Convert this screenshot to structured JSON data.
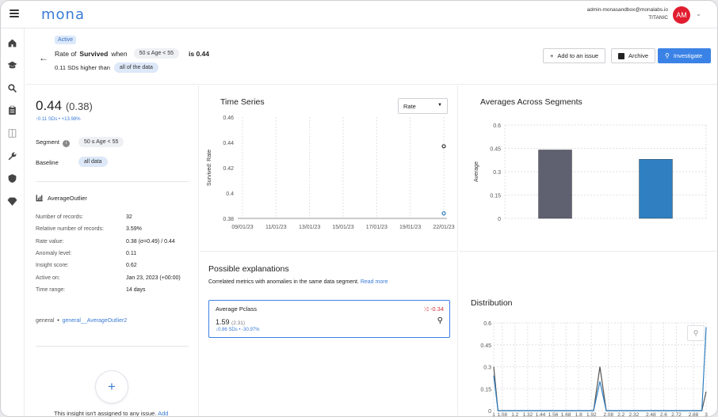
{
  "app": {
    "logo": "mona"
  },
  "user": {
    "email": "admin-monasandbox@monalabs.io",
    "org": "TITANIC",
    "initials": "AM"
  },
  "header": {
    "status": "Active",
    "title_prefix": "Rate of",
    "metric": "Survived",
    "when": "when",
    "segment_chip": "50 ≤ Age < 55",
    "is_label": "is 0.44",
    "subtitle": "0.11 SDs higher than",
    "baseline_chip": "all of the data",
    "buttons": {
      "add_issue": "Add to an issue",
      "archive": "Archive",
      "investigate": "Investigate"
    }
  },
  "summary": {
    "value": "0.44",
    "baseline_value": "(0.38)",
    "delta": "↑0.11 SDs • +13.98%",
    "segment_label": "Segment",
    "segment_value": "50 ≤ Age < 55",
    "baseline_label": "Baseline",
    "baseline_chip": "all data",
    "type": "AverageOutlier",
    "details": [
      {
        "k": "Number of records:",
        "v": "32"
      },
      {
        "k": "Relative number of records:",
        "v": "3.59%"
      },
      {
        "k": "Rate value:",
        "v": "0.38 (σ=0.49) / 0.44"
      },
      {
        "k": "Anomaly level:",
        "v": "0.11"
      },
      {
        "k": "Insight score:",
        "v": "0.62"
      },
      {
        "k": "Active on:",
        "v": "Jan 23, 2023 (+00:00)"
      },
      {
        "k": "Time range:",
        "v": "14 days"
      }
    ],
    "tag_prefix": "general",
    "tag_link": "general__AverageOutlier2",
    "no_issue_text": "This insight isn't assigned to any issue.",
    "no_issue_link": "Add"
  },
  "time_series": {
    "title": "Time Series",
    "select_value": "Rate",
    "chart_data": {
      "type": "scatter",
      "ylabel": "Survived: Rate",
      "ylim": [
        0.38,
        0.46
      ],
      "yticks": [
        "0.38",
        "0.4",
        "0.42",
        "0.44",
        "0.46"
      ],
      "xticks": [
        "09/01/23",
        "11/01/23",
        "13/01/23",
        "15/01/23",
        "17/01/23",
        "19/01/23",
        "22/01/23"
      ],
      "series": [
        {
          "name": "",
          "color": "#333333",
          "x": [
            "22/01/23"
          ],
          "y": [
            0.437
          ]
        },
        {
          "name": "",
          "color": "#2f7fc1",
          "x": [
            "22/01/23"
          ],
          "y": [
            0.384
          ]
        }
      ]
    }
  },
  "averages": {
    "title": "Averages Across Segments",
    "chart_data": {
      "type": "bar",
      "ylabel": "Average",
      "ylim": [
        0,
        0.6
      ],
      "yticks": [
        "0",
        "0.15",
        "0.3",
        "0.45",
        "0.6"
      ],
      "categories": [
        "",
        ""
      ],
      "values": [
        0.44,
        0.38
      ],
      "colors": [
        "#5f6070",
        "#2f7fc1"
      ]
    }
  },
  "explanations": {
    "title": "Possible explanations",
    "desc": "Correlated metrics with anomalies in the same data segment.",
    "read_more": "Read more",
    "card": {
      "name": "Average Pclass",
      "corr": "-0.34",
      "value": "1.59",
      "baseline": "(2.31)",
      "delta": "↓0.86 SDs • -30.97%"
    }
  },
  "distribution": {
    "title": "Distribution",
    "chart_data": {
      "type": "line",
      "ylim": [
        0,
        0.6
      ],
      "yticks": [
        "0",
        "0.15",
        "0.3",
        "0.45",
        "0.6"
      ],
      "xticks": [
        "1",
        "1.08",
        "1.2",
        "1.32",
        "1.44",
        "1.56",
        "1.68",
        "1.8",
        "1.92",
        "2.08",
        "2.2",
        "2.32",
        "2.48",
        "2.6",
        "2.72",
        "2.88",
        "3"
      ],
      "series": [
        {
          "name": "",
          "color": "#555555",
          "points": [
            [
              1,
              0.3
            ],
            [
              1.04,
              0.0
            ],
            [
              1.94,
              0.0
            ],
            [
              2.0,
              0.3
            ],
            [
              2.06,
              0.0
            ],
            [
              2.96,
              0.0
            ],
            [
              3,
              0.13
            ]
          ]
        },
        {
          "name": "",
          "color": "#2f7fc1",
          "points": [
            [
              1,
              0.24
            ],
            [
              1.04,
              0.0
            ],
            [
              1.94,
              0.0
            ],
            [
              2.0,
              0.2
            ],
            [
              2.06,
              0.0
            ],
            [
              2.96,
              0.0
            ],
            [
              3,
              0.57
            ]
          ]
        }
      ]
    }
  }
}
